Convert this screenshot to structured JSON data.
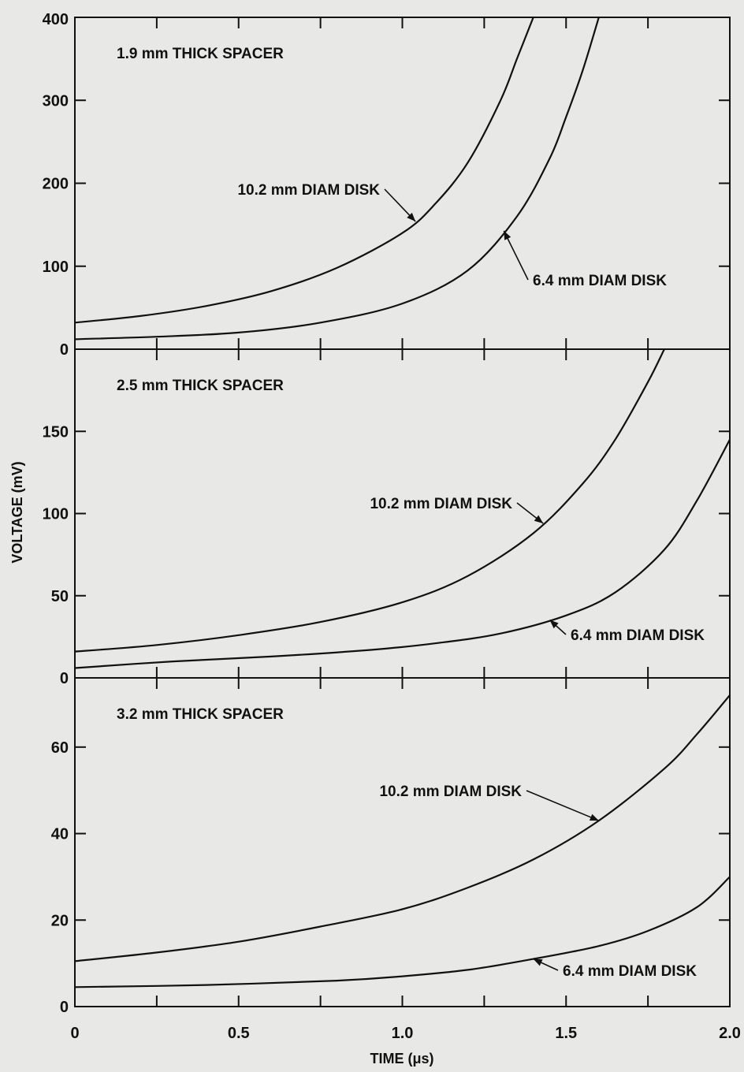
{
  "chart_data": {
    "type": "line",
    "xlabel": "TIME (μs)",
    "ylabel": "VOLTAGE (mV)",
    "xlim": [
      0,
      2.0
    ],
    "x_ticks": [
      0,
      0.5,
      1.0,
      1.5,
      2.0
    ],
    "x_tick_labels": [
      "0",
      "0.5",
      "1.0",
      "1.5",
      "2.0"
    ],
    "grid": false,
    "panels": [
      {
        "title": "1.9 mm THICK SPACER",
        "ylim": [
          0,
          400
        ],
        "y_ticks": [
          0,
          100,
          200,
          300,
          400
        ],
        "y_tick_labels": [
          "0",
          "100",
          "200",
          "300",
          "400"
        ],
        "series": [
          {
            "name": "10.2 mm DIAM DISK",
            "x": [
              0,
              0.2,
              0.4,
              0.6,
              0.8,
              1.0,
              1.1,
              1.2,
              1.3,
              1.35,
              1.4
            ],
            "y": [
              32,
              40,
              52,
              70,
              98,
              140,
              175,
              225,
              300,
              350,
              400
            ],
            "label_at": 1.04
          },
          {
            "name": "6.4 mm DIAM DISK",
            "x": [
              0,
              0.25,
              0.5,
              0.75,
              1.0,
              1.2,
              1.35,
              1.45,
              1.5,
              1.55,
              1.6
            ],
            "y": [
              12,
              15,
              20,
              32,
              55,
              95,
              160,
              230,
              280,
              335,
              400
            ],
            "label_at": 1.31
          }
        ]
      },
      {
        "title": "2.5 mm THICK SPACER",
        "ylim": [
          0,
          200
        ],
        "y_ticks": [
          0,
          50,
          100,
          150
        ],
        "y_tick_labels": [
          "0",
          "50",
          "100",
          "150"
        ],
        "series": [
          {
            "name": "10.2 mm DIAM DISK",
            "x": [
              0,
              0.25,
              0.5,
              0.75,
              1.0,
              1.2,
              1.4,
              1.55,
              1.65,
              1.75,
              1.8
            ],
            "y": [
              16,
              20,
              26,
              34,
              46,
              62,
              88,
              118,
              145,
              180,
              200
            ],
            "label_at": 1.43
          },
          {
            "name": "6.4 mm DIAM DISK",
            "x": [
              0,
              0.3,
              0.6,
              0.9,
              1.1,
              1.3,
              1.5,
              1.65,
              1.8,
              1.9,
              2.0
            ],
            "y": [
              6,
              10,
              13,
              17,
              21,
              27,
              38,
              52,
              78,
              108,
              145
            ],
            "label_at": 1.45
          }
        ]
      },
      {
        "title": "3.2 mm THICK SPACER",
        "ylim": [
          0,
          76
        ],
        "y_ticks": [
          0,
          20,
          40,
          60
        ],
        "y_tick_labels": [
          "0",
          "20",
          "40",
          "60"
        ],
        "series": [
          {
            "name": "10.2 mm DIAM DISK",
            "x": [
              0,
              0.25,
              0.5,
              0.75,
              1.0,
              1.2,
              1.4,
              1.6,
              1.8,
              1.9,
              2.0
            ],
            "y": [
              10.5,
              12.5,
              15,
              18.5,
              22.5,
              27.5,
              34,
              43,
              55,
              63,
              72
            ],
            "label_at": 1.6
          },
          {
            "name": "6.4 mm DIAM DISK",
            "x": [
              0,
              0.4,
              0.8,
              1.0,
              1.2,
              1.4,
              1.6,
              1.75,
              1.9,
              2.0
            ],
            "y": [
              4.5,
              5,
              6,
              7,
              8.5,
              11,
              14,
              17.5,
              23,
              30
            ],
            "label_at": 1.4
          }
        ]
      }
    ]
  }
}
